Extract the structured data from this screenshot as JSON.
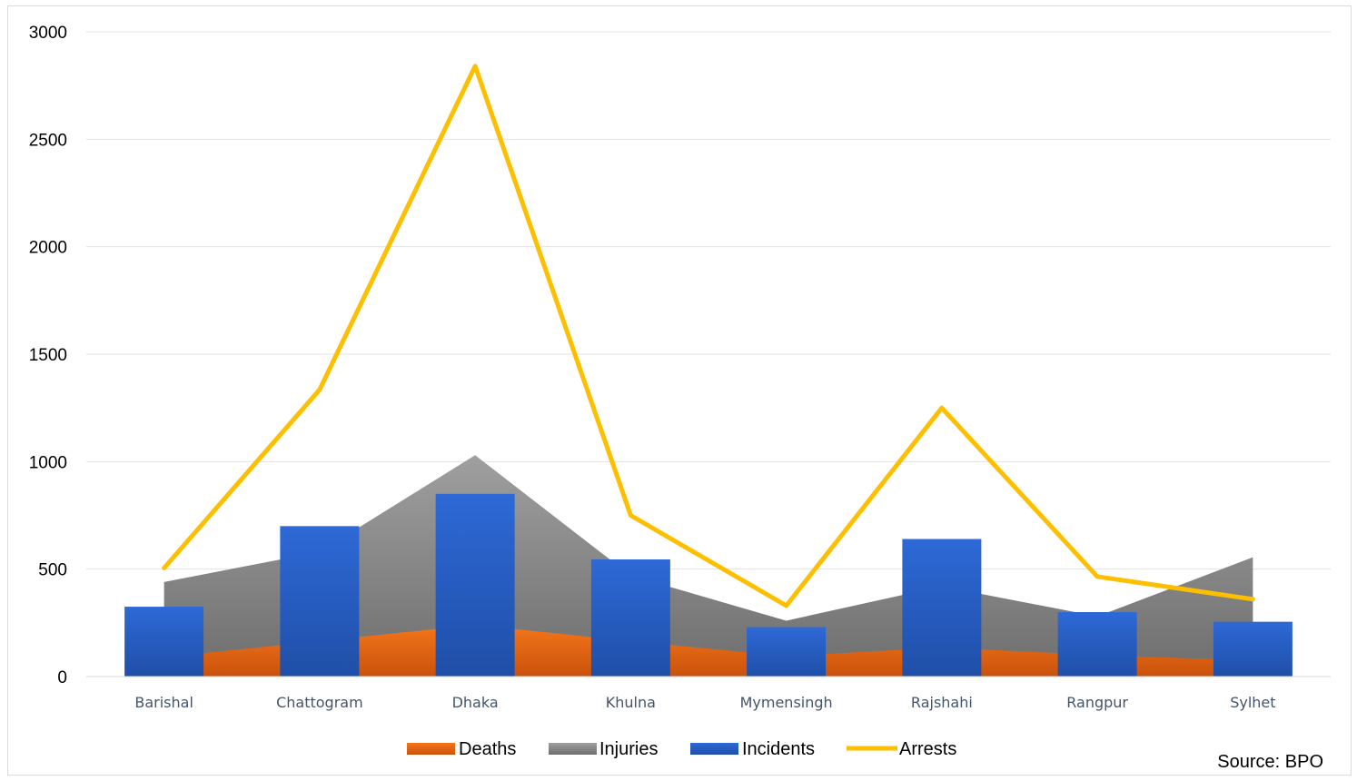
{
  "chart_data": {
    "type": "bar",
    "categories": [
      "Barishal",
      "Chattogram",
      "Dhaka",
      "Khulna",
      "Mymensingh",
      "Rajshahi",
      "Rangpur",
      "Sylhet"
    ],
    "series": [
      {
        "name": "Deaths",
        "type": "area",
        "color": "#f5761a",
        "values": [
          90,
          165,
          240,
          165,
          95,
          135,
          100,
          75
        ]
      },
      {
        "name": "Injuries",
        "type": "area",
        "color": "#8c8c8c",
        "values": [
          440,
          580,
          1030,
          470,
          260,
          420,
          280,
          555
        ]
      },
      {
        "name": "Incidents",
        "type": "bar",
        "color": "#2e66cc",
        "values": [
          325,
          700,
          850,
          545,
          230,
          640,
          300,
          255
        ]
      },
      {
        "name": "Arrests",
        "type": "line",
        "color": "#fdbf00",
        "values": [
          505,
          1335,
          2840,
          750,
          330,
          1250,
          465,
          360
        ]
      }
    ],
    "ylim": [
      0,
      3000
    ],
    "yticks": [
      "0",
      "500",
      "1000",
      "1500",
      "2000",
      "2500",
      "3000"
    ],
    "grid": true,
    "legend_position": "bottom",
    "source": "Source: BPO"
  }
}
